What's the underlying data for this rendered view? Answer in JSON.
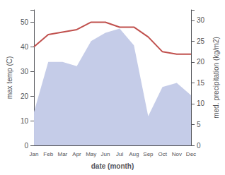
{
  "chart_data": {
    "type": "line",
    "xlabel": "date (month)",
    "ylabel": "max temp (C)",
    "y2label": "med. precipitation (kg/m2)",
    "categories": [
      "Jan",
      "Feb",
      "Mar",
      "Apr",
      "May",
      "Jun",
      "Jul",
      "Aug",
      "Sep",
      "Oct",
      "Nov",
      "Dec"
    ],
    "series": [
      {
        "type": "area",
        "axis": "y2",
        "color": "#c5cce8",
        "values": [
          8,
          20,
          20,
          19,
          25,
          27,
          28,
          24,
          7,
          14,
          15,
          12
        ]
      },
      {
        "type": "line",
        "color": "#c0504d",
        "values": [
          40,
          45,
          46,
          47,
          50,
          50,
          48,
          48,
          44,
          38,
          37,
          37
        ]
      }
    ],
    "ylim": [
      0,
      55
    ],
    "yticks": [
      0,
      10,
      20,
      30,
      40,
      50
    ],
    "y2lim": [
      0,
      32.5
    ],
    "y2ticks": [
      0,
      5,
      10,
      15,
      20,
      25,
      30
    ],
    "grid": false
  }
}
